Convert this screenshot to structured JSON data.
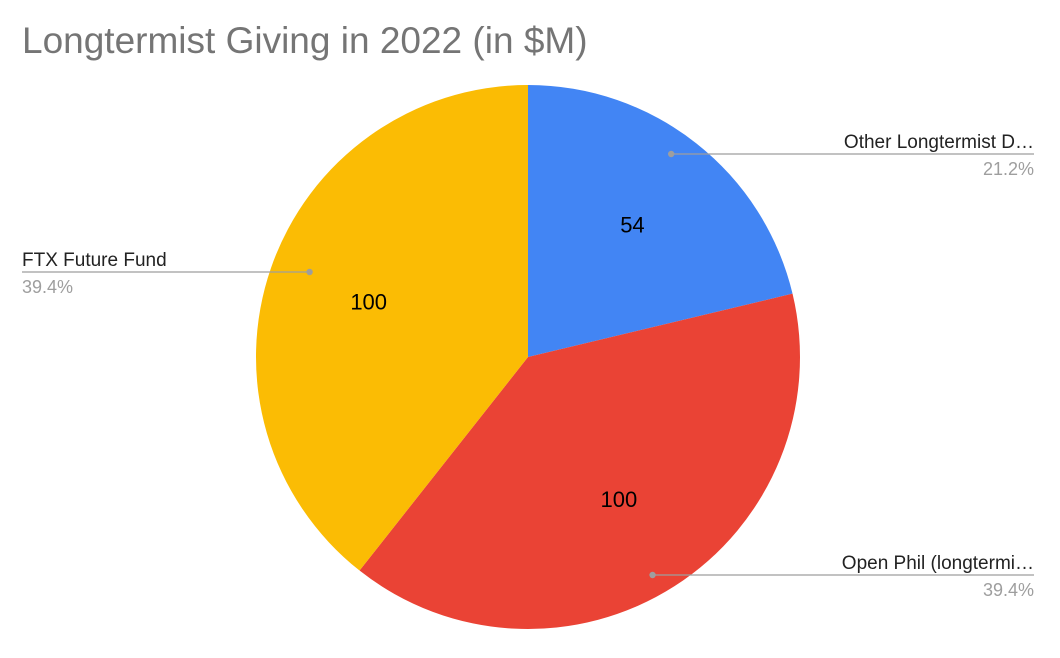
{
  "chart_data": {
    "type": "pie",
    "title": "Longtermist Giving in 2022 (in $M)",
    "start_angle_deg": 0,
    "slices": [
      {
        "label": "Other Longtermist D…",
        "value": 54,
        "value_label": "54",
        "percent_label": "21.2%",
        "color": "#4285f4",
        "legend_side": "right"
      },
      {
        "label": "Open Phil (longtermi…",
        "value": 100,
        "value_label": "100",
        "percent_label": "39.4%",
        "color": "#ea4335",
        "legend_side": "right"
      },
      {
        "label": "FTX Future Fund",
        "value": 100,
        "value_label": "100",
        "percent_label": "39.4%",
        "color": "#fbbc04",
        "legend_side": "left"
      }
    ]
  }
}
